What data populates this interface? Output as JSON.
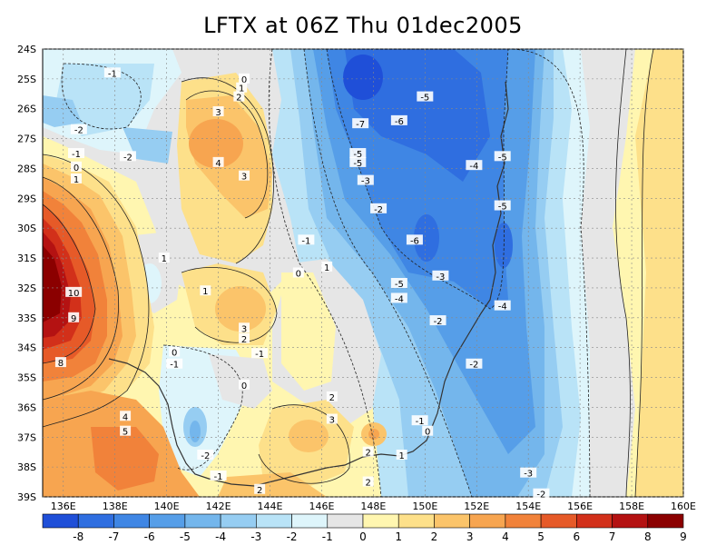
{
  "title": "LFTX at 06Z Thu 01dec2005",
  "map": {
    "lat_ticks": [
      "24S",
      "25S",
      "26S",
      "27S",
      "28S",
      "29S",
      "30S",
      "31S",
      "32S",
      "33S",
      "34S",
      "35S",
      "36S",
      "37S",
      "38S",
      "39S"
    ],
    "lon_ticks": [
      "136E",
      "138E",
      "140E",
      "142E",
      "144E",
      "146E",
      "148E",
      "150E",
      "152E",
      "154E",
      "156E",
      "158E",
      "160E"
    ],
    "lon_range": [
      135.2,
      160
    ],
    "lat_range": [
      -24,
      -39
    ]
  },
  "colorbar": {
    "labels": [
      "-8",
      "-7",
      "-6",
      "-5",
      "-4",
      "-3",
      "-2",
      "-1",
      "0",
      "1",
      "2",
      "3",
      "4",
      "5",
      "6",
      "7",
      "8",
      "9"
    ],
    "colors": [
      "#1f4fd8",
      "#2f6ee0",
      "#3f86e4",
      "#569ee8",
      "#74b6ec",
      "#96cdf2",
      "#b9e3f7",
      "#def5fb",
      "#e6e6e6",
      "#fff6b0",
      "#fde08a",
      "#fbc46a",
      "#f7a550",
      "#f1823a",
      "#e65a28",
      "#d2301a",
      "#b41212",
      "#8b0000"
    ]
  },
  "contour_labels": [
    {
      "t": "-1",
      "lon": 137.9,
      "lat": -24.8
    },
    {
      "t": "0",
      "lon": 143.0,
      "lat": -25.0
    },
    {
      "t": "1",
      "lon": 142.9,
      "lat": -25.3
    },
    {
      "t": "2",
      "lon": 142.8,
      "lat": -25.6
    },
    {
      "t": "-5",
      "lon": 150.0,
      "lat": -25.6
    },
    {
      "t": "-2",
      "lon": 136.6,
      "lat": -26.7
    },
    {
      "t": "3",
      "lon": 142.0,
      "lat": -26.1
    },
    {
      "t": "-7",
      "lon": 147.5,
      "lat": -26.5
    },
    {
      "t": "-6",
      "lon": 149.0,
      "lat": -26.4
    },
    {
      "t": "-1",
      "lon": 136.5,
      "lat": -27.5
    },
    {
      "t": "-2",
      "lon": 138.5,
      "lat": -27.6
    },
    {
      "t": "-5",
      "lon": 147.4,
      "lat": -27.5
    },
    {
      "t": "-5",
      "lon": 147.4,
      "lat": -27.8
    },
    {
      "t": "-5",
      "lon": 153.0,
      "lat": -27.6
    },
    {
      "t": "0",
      "lon": 136.5,
      "lat": -27.95
    },
    {
      "t": "4",
      "lon": 142.0,
      "lat": -27.8
    },
    {
      "t": "-4",
      "lon": 151.9,
      "lat": -27.9
    },
    {
      "t": "1",
      "lon": 136.5,
      "lat": -28.35
    },
    {
      "t": "3",
      "lon": 143.0,
      "lat": -28.25
    },
    {
      "t": "-3",
      "lon": 147.7,
      "lat": -28.4
    },
    {
      "t": "-2",
      "lon": 148.2,
      "lat": -29.35
    },
    {
      "t": "-5",
      "lon": 153.0,
      "lat": -29.25
    },
    {
      "t": "-1",
      "lon": 145.4,
      "lat": -30.4
    },
    {
      "t": "-6",
      "lon": 149.6,
      "lat": -30.4
    },
    {
      "t": "1",
      "lon": 139.9,
      "lat": -31.0
    },
    {
      "t": "1",
      "lon": 146.2,
      "lat": -31.3
    },
    {
      "t": "0",
      "lon": 145.1,
      "lat": -31.5
    },
    {
      "t": "-3",
      "lon": 150.6,
      "lat": -31.6
    },
    {
      "t": "-5",
      "lon": 149.0,
      "lat": -31.85
    },
    {
      "t": "10",
      "lon": 136.4,
      "lat": -32.15
    },
    {
      "t": "1",
      "lon": 141.5,
      "lat": -32.1
    },
    {
      "t": "-4",
      "lon": 149.0,
      "lat": -32.35
    },
    {
      "t": "-4",
      "lon": 153.0,
      "lat": -32.6
    },
    {
      "t": "9",
      "lon": 136.4,
      "lat": -33.0
    },
    {
      "t": "-2",
      "lon": 150.5,
      "lat": -33.1
    },
    {
      "t": "3",
      "lon": 143.0,
      "lat": -33.35
    },
    {
      "t": "2",
      "lon": 143.0,
      "lat": -33.7
    },
    {
      "t": "0",
      "lon": 140.3,
      "lat": -34.15
    },
    {
      "t": "-1",
      "lon": 143.6,
      "lat": -34.2
    },
    {
      "t": "8",
      "lon": 135.9,
      "lat": -34.5
    },
    {
      "t": "-1",
      "lon": 140.3,
      "lat": -34.55
    },
    {
      "t": "-2",
      "lon": 151.9,
      "lat": -34.55
    },
    {
      "t": "0",
      "lon": 143.0,
      "lat": -35.25
    },
    {
      "t": "2",
      "lon": 146.4,
      "lat": -35.65
    },
    {
      "t": "4",
      "lon": 138.4,
      "lat": -36.3
    },
    {
      "t": "3",
      "lon": 146.4,
      "lat": -36.4
    },
    {
      "t": "-1",
      "lon": 149.8,
      "lat": -36.45
    },
    {
      "t": "5",
      "lon": 138.4,
      "lat": -36.8
    },
    {
      "t": "0",
      "lon": 150.1,
      "lat": -36.8
    },
    {
      "t": "-2",
      "lon": 141.5,
      "lat": -37.6
    },
    {
      "t": "2",
      "lon": 147.8,
      "lat": -37.5
    },
    {
      "t": "1",
      "lon": 149.1,
      "lat": -37.6
    },
    {
      "t": "-1",
      "lon": 142.0,
      "lat": -38.3
    },
    {
      "t": "-3",
      "lon": 154.0,
      "lat": -38.2
    },
    {
      "t": "2",
      "lon": 143.6,
      "lat": -38.75
    },
    {
      "t": "2",
      "lon": 147.8,
      "lat": -38.5
    },
    {
      "t": "-2",
      "lon": 154.5,
      "lat": -38.9
    }
  ]
}
